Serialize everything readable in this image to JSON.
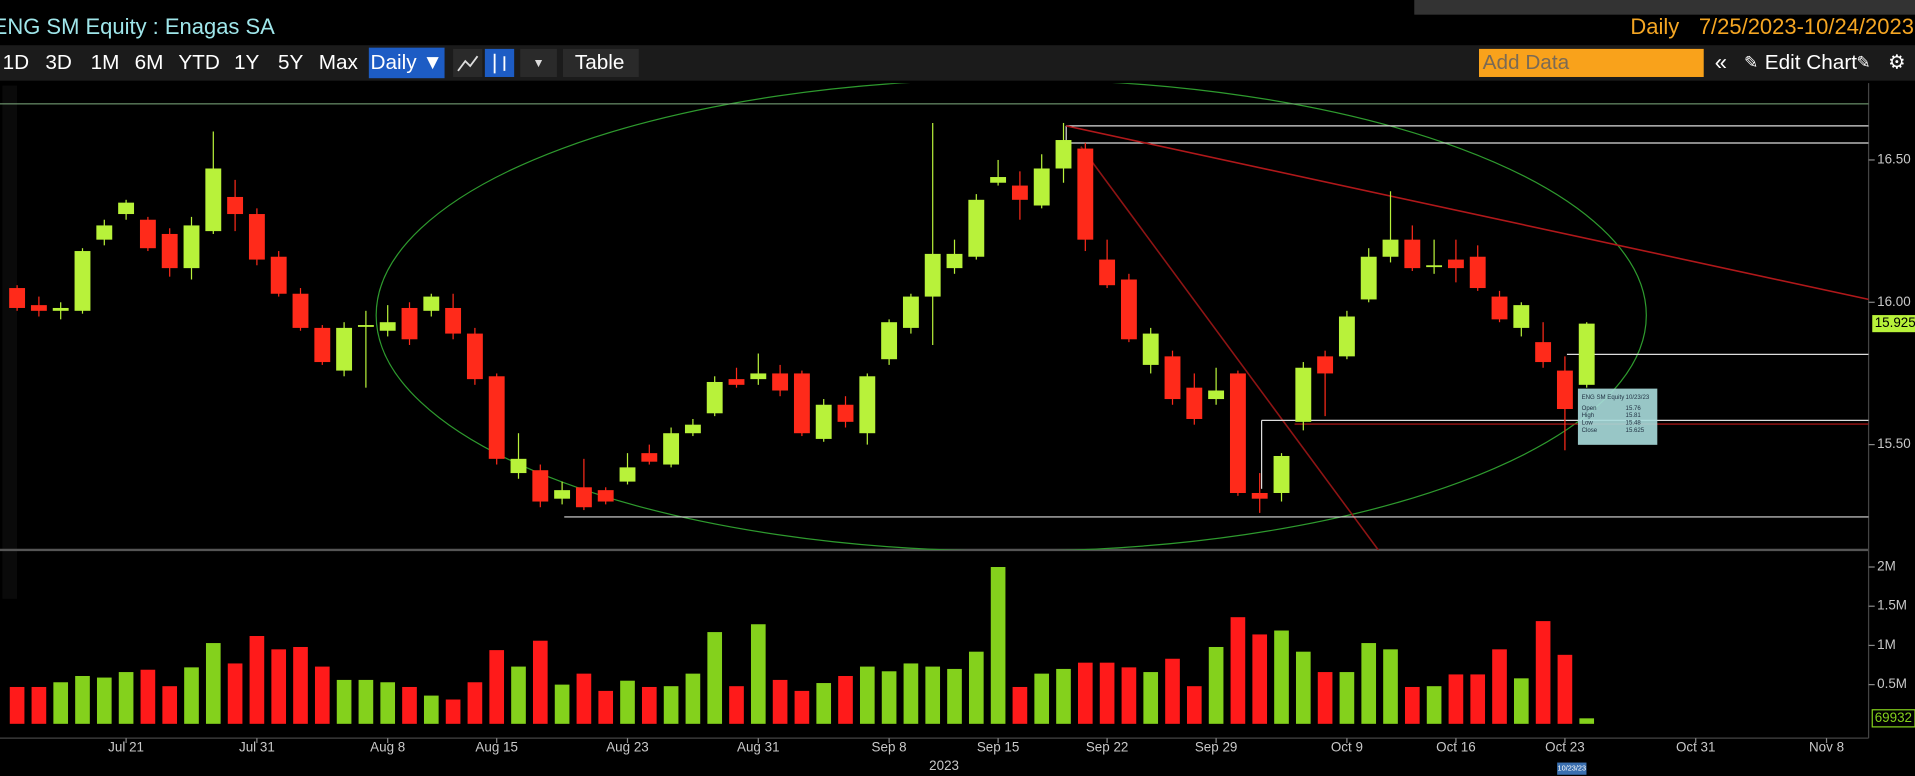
{
  "header": {
    "title": "ENG SM Equity : Enagas SA",
    "frequency": "Daily",
    "date_range": "7/25/2023-10/24/2023"
  },
  "toolbar": {
    "periods": [
      "1D",
      "3D",
      "1M",
      "6M",
      "YTD",
      "1Y",
      "5Y",
      "Max"
    ],
    "interval": "Daily ▼",
    "table": "Table",
    "add_data": "Add Data",
    "edit_chart": "Edit Chart"
  },
  "chart_data": {
    "type": "candlestick",
    "categories": [
      null,
      null,
      null,
      null,
      null,
      "Jul 21",
      null,
      null,
      null,
      null,
      null,
      "Jul 31",
      null,
      null,
      null,
      null,
      null,
      "Aug 8",
      null,
      null,
      null,
      null,
      "Aug 15",
      null,
      null,
      null,
      null,
      null,
      "Aug 23",
      null,
      null,
      null,
      null,
      null,
      "Aug 31",
      null,
      null,
      null,
      null,
      null,
      "Sep 8",
      null,
      null,
      null,
      null,
      "Sep 15",
      null,
      null,
      null,
      null,
      "Sep 22",
      null,
      null,
      null,
      null,
      "Sep 29",
      null,
      null,
      null,
      null,
      null,
      "Oct 9",
      null,
      null,
      null,
      null,
      "Oct 16",
      null,
      null,
      null,
      null,
      "Oct 23",
      null,
      null,
      null,
      null,
      null,
      "Oct 31",
      null,
      null,
      null,
      null,
      null,
      "Nov 8"
    ],
    "year_label": "2023",
    "open": [
      16.05,
      15.99,
      15.97,
      15.97,
      16.22,
      16.31,
      16.29,
      16.24,
      16.12,
      16.25,
      16.37,
      16.31,
      16.16,
      16.03,
      15.91,
      15.76,
      15.92,
      15.9,
      15.98,
      15.97,
      15.98,
      15.89,
      15.74,
      15.4,
      15.41,
      15.31,
      15.35,
      15.34,
      15.37,
      15.47,
      15.43,
      15.54,
      15.61,
      15.73,
      15.73,
      15.75,
      15.75,
      15.52,
      15.64,
      15.54,
      15.8,
      15.91,
      16.02,
      16.12,
      16.16,
      16.42,
      16.41,
      16.34,
      16.47,
      16.54,
      16.15,
      16.08,
      15.78,
      15.81,
      15.7,
      15.66,
      15.75,
      15.33,
      15.33,
      15.58,
      15.81,
      15.81,
      16.01,
      16.16,
      16.22,
      16.13,
      16.15,
      16.16,
      16.02,
      15.91,
      15.86,
      15.76,
      15.71,
      null,
      null,
      null,
      null,
      null,
      null,
      null,
      null,
      null,
      null,
      null
    ],
    "high": [
      16.06,
      16.02,
      16,
      16.19,
      16.29,
      16.36,
      16.3,
      16.26,
      16.3,
      16.6,
      16.43,
      16.33,
      16.18,
      16.05,
      15.92,
      15.93,
      15.97,
      15.99,
      16,
      16.03,
      16.03,
      15.91,
      15.75,
      15.54,
      15.43,
      15.37,
      15.45,
      15.35,
      15.47,
      15.5,
      15.56,
      15.59,
      15.74,
      15.77,
      15.82,
      15.78,
      15.76,
      15.66,
      15.67,
      15.75,
      15.94,
      16.03,
      16.63,
      16.22,
      16.38,
      16.5,
      16.46,
      16.52,
      16.63,
      16.56,
      16.22,
      16.1,
      15.91,
      15.83,
      15.75,
      15.77,
      15.76,
      15.4,
      15.47,
      15.79,
      15.83,
      15.97,
      16.19,
      16.39,
      16.27,
      16.22,
      16.22,
      16.2,
      16.04,
      16,
      15.93,
      15.81,
      15.93,
      null,
      null,
      null,
      null,
      null,
      null,
      null,
      null,
      null,
      null,
      null
    ],
    "low": [
      15.97,
      15.95,
      15.94,
      15.96,
      16.2,
      16.29,
      16.18,
      16.09,
      16.08,
      16.24,
      16.25,
      16.13,
      16.02,
      15.9,
      15.78,
      15.74,
      15.7,
      15.88,
      15.85,
      15.95,
      15.87,
      15.71,
      15.43,
      15.38,
      15.28,
      15.29,
      15.27,
      15.29,
      15.36,
      15.43,
      15.42,
      15.53,
      15.6,
      15.7,
      15.71,
      15.67,
      15.53,
      15.51,
      15.56,
      15.5,
      15.78,
      15.89,
      15.85,
      16.1,
      16.15,
      16.41,
      16.29,
      16.33,
      16.42,
      16.18,
      16.05,
      15.86,
      15.75,
      15.64,
      15.57,
      15.64,
      15.32,
      15.26,
      15.3,
      15.55,
      15.6,
      15.8,
      16,
      16.14,
      16.11,
      16.1,
      16.07,
      16.04,
      15.93,
      15.88,
      15.77,
      15.48,
      15.7,
      null,
      null,
      null,
      null,
      null,
      null,
      null,
      null,
      null,
      null,
      null
    ],
    "close": [
      15.98,
      15.97,
      15.98,
      16.18,
      16.27,
      16.35,
      16.19,
      16.12,
      16.27,
      16.47,
      16.31,
      16.15,
      16.03,
      15.91,
      15.79,
      15.91,
      15.92,
      15.93,
      15.87,
      16.02,
      15.89,
      15.73,
      15.45,
      15.45,
      15.3,
      15.34,
      15.28,
      15.3,
      15.42,
      15.44,
      15.54,
      15.57,
      15.72,
      15.71,
      15.75,
      15.69,
      15.54,
      15.64,
      15.58,
      15.74,
      15.93,
      16.02,
      16.17,
      16.17,
      16.36,
      16.44,
      16.36,
      16.47,
      16.57,
      16.22,
      16.06,
      15.87,
      15.89,
      15.66,
      15.59,
      15.69,
      15.33,
      15.31,
      15.46,
      15.77,
      15.75,
      15.95,
      16.16,
      16.22,
      16.12,
      16.13,
      16.12,
      16.05,
      15.94,
      15.99,
      15.79,
      15.625,
      15.925,
      null,
      null,
      null,
      null,
      null,
      null,
      null,
      null,
      null,
      null,
      null
    ],
    "up_color": "#b8f23a",
    "down_color": "#ff2a1a",
    "ylim": [
      15.13,
      16.77
    ],
    "yticks": [
      {
        "value": 16.5,
        "label": "16.50"
      },
      {
        "value": 16,
        "label": "16.00"
      },
      {
        "value": 15.5,
        "label": "15.50"
      }
    ],
    "tooltip": {
      "security": "ENG SM Equity",
      "date": "10/23/23",
      "labels": [
        "Open",
        "High",
        "Low",
        "Close"
      ]
    },
    "volume": {
      "values": [
        470000,
        470000,
        530000,
        610000,
        590000,
        660000,
        690000,
        480000,
        720000,
        1030000,
        770000,
        1120000,
        950000,
        980000,
        730000,
        560000,
        560000,
        530000,
        470000,
        360000,
        310000,
        530000,
        940000,
        730000,
        1060000,
        500000,
        640000,
        420000,
        550000,
        470000,
        480000,
        640000,
        1170000,
        480000,
        1270000,
        560000,
        420000,
        520000,
        610000,
        730000,
        670000,
        770000,
        730000,
        700000,
        920000,
        2000000,
        470000,
        640000,
        700000,
        780000,
        780000,
        720000,
        660000,
        830000,
        480000,
        980000,
        1360000,
        1140000,
        1190000,
        920000,
        660000,
        660000,
        1030000,
        950000,
        470000,
        480000,
        630000,
        630000,
        950000,
        580000,
        1310000,
        880000,
        69932,
        null,
        null,
        null,
        null,
        null,
        null,
        null,
        null,
        null,
        null,
        null
      ],
      "up_color": "#84d11c",
      "down_color": "#ff1a1a",
      "ylim": [
        -120000,
        2140000
      ],
      "yticks": [
        {
          "value": 2000000,
          "label": "2M"
        },
        {
          "value": 1500000,
          "label": "1.5M"
        },
        {
          "value": 1000000,
          "label": "1M"
        },
        {
          "value": 500000,
          "label": "0.5M"
        }
      ]
    }
  }
}
